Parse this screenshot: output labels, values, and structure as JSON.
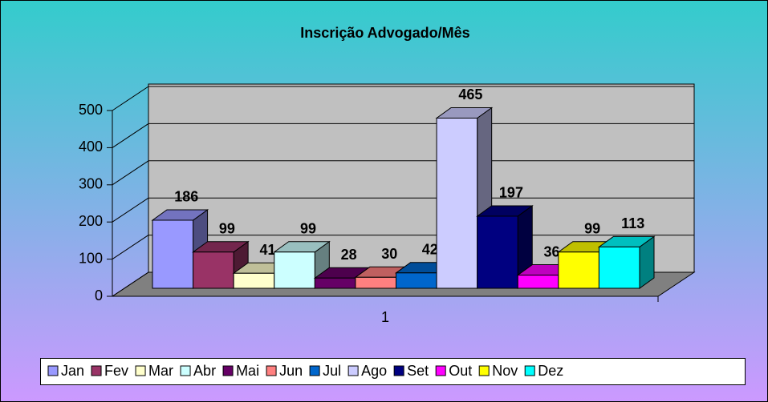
{
  "chart_data": {
    "type": "bar3d",
    "title": "Inscrição Advogado/Mês",
    "categories": [
      "1"
    ],
    "ylim": [
      0,
      500
    ],
    "yticks": [
      0,
      100,
      200,
      300,
      400,
      500
    ],
    "grid": true,
    "legend": "bottom",
    "series": [
      {
        "name": "Jan",
        "color": "#9999FF",
        "values": [
          186
        ]
      },
      {
        "name": "Fev",
        "color": "#993366",
        "values": [
          99
        ]
      },
      {
        "name": "Mar",
        "color": "#FFFFCC",
        "values": [
          41
        ]
      },
      {
        "name": "Abr",
        "color": "#CCFFFF",
        "values": [
          99
        ]
      },
      {
        "name": "Mai",
        "color": "#660066",
        "values": [
          28
        ]
      },
      {
        "name": "Jun",
        "color": "#FF8080",
        "values": [
          30
        ]
      },
      {
        "name": "Jul",
        "color": "#0066CC",
        "values": [
          42
        ]
      },
      {
        "name": "Ago",
        "color": "#CCCCFF",
        "values": [
          465
        ]
      },
      {
        "name": "Set",
        "color": "#000080",
        "values": [
          197
        ]
      },
      {
        "name": "Out",
        "color": "#FF00FF",
        "values": [
          36
        ]
      },
      {
        "name": "Nov",
        "color": "#FFFF00",
        "values": [
          99
        ]
      },
      {
        "name": "Dez",
        "color": "#00FFFF",
        "values": [
          113
        ]
      }
    ]
  }
}
